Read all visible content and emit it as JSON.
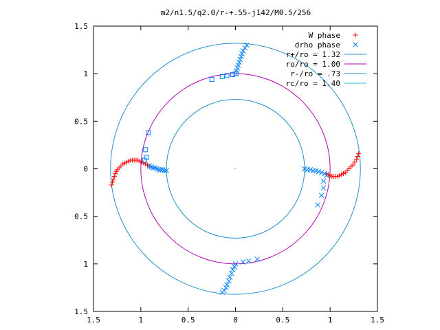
{
  "chart_data": {
    "type": "scatter",
    "title": "m2/n1.5/q2.0/r-+.55-j142/M0.5/256",
    "xlabel": "",
    "ylabel": "",
    "xlim": [
      -1.5,
      1.5
    ],
    "ylim": [
      -1.5,
      1.5
    ],
    "x_ticks": [
      -1.5,
      -1,
      -0.5,
      0,
      0.5,
      1,
      1.5
    ],
    "x_tick_labels": [
      "1.5",
      "1",
      "0.5",
      "0",
      "0.5",
      "1",
      "1.5"
    ],
    "y_ticks": [
      1.5,
      1,
      0.5,
      0,
      -0.5,
      -1,
      -1.5
    ],
    "y_tick_labels": [
      "1.5",
      "1",
      "0.5",
      "0",
      "0.5",
      "1",
      "1.5"
    ],
    "grid": false,
    "legend_position": "top-right",
    "legend": [
      {
        "label": "W phase",
        "color": "#ff0000",
        "marker": "plus"
      },
      {
        "label": "drho phase",
        "color": "#0080ff",
        "marker": "cross"
      },
      {
        "label": "r+/ro = 1.32",
        "color": "#1e90c8",
        "marker": "line"
      },
      {
        "label": "ro/ro = 1.00",
        "color": "#b000b0",
        "marker": "line"
      },
      {
        "label": "r-/ro = .73",
        "color": "#1e90c8",
        "marker": "line"
      },
      {
        "label": "rc/ro = 1.40",
        "color": "#20b8d8",
        "marker": "line"
      }
    ],
    "circles": [
      {
        "name": "r+/ro = 1.32",
        "radius": 1.32,
        "color": "#1e90c8"
      },
      {
        "name": "ro/ro = 1.00",
        "radius": 1.0,
        "color": "#b000b0"
      },
      {
        "name": "r-/ro = .73",
        "radius": 0.73,
        "color": "#1e90c8"
      }
    ],
    "series": [
      {
        "name": "W phase",
        "marker": "plus",
        "color": "#ff0000",
        "points": [
          [
            -1.31,
            -0.17
          ],
          [
            -1.3,
            -0.14
          ],
          [
            -1.29,
            -0.11
          ],
          [
            -1.28,
            -0.08
          ],
          [
            -1.27,
            -0.05
          ],
          [
            -1.26,
            -0.03
          ],
          [
            -1.25,
            -0.01
          ],
          [
            -1.23,
            0.01
          ],
          [
            -1.21,
            0.03
          ],
          [
            -1.19,
            0.05
          ],
          [
            -1.17,
            0.06
          ],
          [
            -1.15,
            0.07
          ],
          [
            -1.13,
            0.08
          ],
          [
            -1.11,
            0.09
          ],
          [
            -1.09,
            0.09
          ],
          [
            -1.07,
            0.09
          ],
          [
            -1.05,
            0.09
          ],
          [
            -1.03,
            0.09
          ],
          [
            -1.01,
            0.08
          ],
          [
            -0.99,
            0.07
          ],
          [
            -0.97,
            0.06
          ],
          [
            -0.95,
            0.05
          ],
          [
            -0.93,
            0.04
          ],
          [
            -0.91,
            0.03
          ],
          [
            0.96,
            -0.05
          ],
          [
            0.98,
            -0.06
          ],
          [
            1.0,
            -0.07
          ],
          [
            1.02,
            -0.08
          ],
          [
            1.04,
            -0.08
          ],
          [
            1.06,
            -0.08
          ],
          [
            1.08,
            -0.08
          ],
          [
            1.1,
            -0.07
          ],
          [
            1.12,
            -0.06
          ],
          [
            1.14,
            -0.05
          ],
          [
            1.16,
            -0.04
          ],
          [
            1.18,
            -0.02
          ],
          [
            1.2,
            0.0
          ],
          [
            1.22,
            0.02
          ],
          [
            1.24,
            0.04
          ],
          [
            1.26,
            0.07
          ],
          [
            1.28,
            0.1
          ],
          [
            1.29,
            0.13
          ],
          [
            1.3,
            0.16
          ]
        ]
      },
      {
        "name": "drho phase",
        "marker": "cross",
        "color": "#0080ff",
        "points": [
          [
            -0.91,
            0.03
          ],
          [
            -0.89,
            0.02
          ],
          [
            -0.87,
            0.01
          ],
          [
            -0.85,
            0.01
          ],
          [
            -0.83,
            0.0
          ],
          [
            -0.81,
            -0.01
          ],
          [
            -0.79,
            -0.01
          ],
          [
            -0.77,
            -0.01
          ],
          [
            -0.75,
            -0.02
          ],
          [
            -0.73,
            -0.02
          ],
          [
            0.73,
            0.0
          ],
          [
            0.76,
            -0.01
          ],
          [
            0.79,
            -0.01
          ],
          [
            0.82,
            -0.02
          ],
          [
            0.85,
            -0.02
          ],
          [
            0.88,
            -0.03
          ],
          [
            0.91,
            -0.04
          ],
          [
            0.94,
            -0.05
          ],
          [
            0.96,
            -0.07
          ],
          [
            0.93,
            -0.13
          ],
          [
            0.93,
            -0.2
          ],
          [
            0.91,
            -0.28
          ],
          [
            0.87,
            -0.38
          ],
          [
            0.0,
            1.0
          ],
          [
            0.01,
            1.03
          ],
          [
            0.02,
            1.06
          ],
          [
            0.03,
            1.09
          ],
          [
            0.04,
            1.12
          ],
          [
            0.05,
            1.15
          ],
          [
            0.06,
            1.18
          ],
          [
            0.07,
            1.21
          ],
          [
            0.08,
            1.24
          ],
          [
            0.1,
            1.27
          ],
          [
            0.12,
            1.3
          ],
          [
            0.0,
            -1.0
          ],
          [
            -0.01,
            -1.03
          ],
          [
            -0.03,
            -1.06
          ],
          [
            -0.04,
            -1.1
          ],
          [
            -0.06,
            -1.14
          ],
          [
            -0.07,
            -1.18
          ],
          [
            -0.09,
            -1.22
          ],
          [
            -0.1,
            -1.25
          ],
          [
            -0.12,
            -1.28
          ],
          [
            -0.14,
            -1.3
          ],
          [
            0.08,
            -0.98
          ],
          [
            0.14,
            -0.97
          ],
          [
            0.23,
            -0.95
          ]
        ]
      },
      {
        "name": "drho phase (squares)",
        "marker": "square",
        "color": "#0080ff",
        "points": [
          [
            -0.92,
            0.38
          ],
          [
            -0.95,
            0.2
          ],
          [
            -0.94,
            0.12
          ],
          [
            -0.96,
            0.09
          ],
          [
            -0.25,
            0.94
          ],
          [
            -0.14,
            0.97
          ],
          [
            -0.09,
            0.98
          ],
          [
            -0.03,
            0.99
          ],
          [
            0.01,
            1.0
          ]
        ]
      }
    ]
  }
}
